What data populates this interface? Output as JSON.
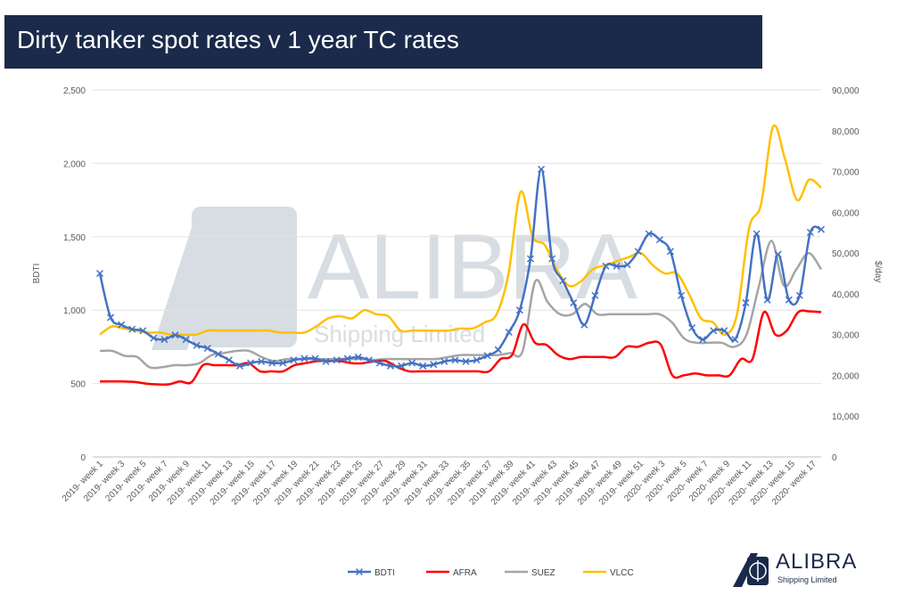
{
  "slide": {
    "title": "Dirty tanker spot rates v 1 year TC rates"
  },
  "watermark": {
    "name": "ALIBRA",
    "subtitle": "Shipping Limited"
  },
  "logo": {
    "name": "ALIBRA",
    "subtitle": "Shipping Limited"
  },
  "chart_data": {
    "type": "line",
    "title": "",
    "ylabel_left": "BDTI",
    "ylabel_right": "$/day",
    "ylim_left": [
      0,
      2500
    ],
    "ylim_right": [
      0,
      90000
    ],
    "yticks_left": [
      0,
      500,
      1000,
      1500,
      2000,
      2500
    ],
    "yticks_right": [
      0,
      10000,
      20000,
      30000,
      40000,
      50000,
      60000,
      70000,
      80000,
      90000
    ],
    "yticks_left_labels": [
      "0",
      "500",
      "1,000",
      "1,500",
      "2,000",
      "2,500"
    ],
    "yticks_right_labels": [
      "0",
      "10,000",
      "20,000",
      "30,000",
      "40,000",
      "50,000",
      "60,000",
      "70,000",
      "80,000",
      "90,000"
    ],
    "x_labels": [
      "2019- week 1",
      "2019- week 3",
      "2019- week 5",
      "2019- week 7",
      "2019- week 9",
      "2019- week 11",
      "2019- week 13",
      "2019- week 15",
      "2019- week 17",
      "2019- week 19",
      "2019- week 21",
      "2019- week 23",
      "2019- week 25",
      "2019- week 27",
      "2019- week 29",
      "2019- week 31",
      "2019- week 33",
      "2019- week 35",
      "2019- week 37",
      "2019- week 39",
      "2019- week 41",
      "2019- week 43",
      "2019- week 45",
      "2019- week 47",
      "2019- week 49",
      "2019- week 51",
      "2020- week 3",
      "2020- week 5",
      "2020- week 7",
      "2020- week 9",
      "2020- week 11",
      "2020- week 13",
      "2020- week 15",
      "2020- week 17"
    ],
    "legend_position": "bottom",
    "grid": true,
    "series": [
      {
        "name": "BDTI",
        "axis": "left",
        "color": "#4472c4",
        "marker": "x",
        "values": [
          1250,
          950,
          900,
          870,
          860,
          810,
          800,
          830,
          800,
          760,
          740,
          700,
          660,
          620,
          640,
          650,
          640,
          640,
          660,
          670,
          670,
          650,
          660,
          670,
          680,
          660,
          640,
          620,
          620,
          640,
          620,
          630,
          650,
          660,
          650,
          660,
          690,
          730,
          850,
          1000,
          1350,
          1960,
          1350,
          1200,
          1050,
          900,
          1100,
          1300,
          1300,
          1310,
          1400,
          1520,
          1480,
          1400,
          1100,
          880,
          800,
          860,
          860,
          800,
          1050,
          1520,
          1070,
          1380,
          1070,
          1100,
          1530,
          1550
        ]
      },
      {
        "name": "AFRA",
        "axis": "right",
        "color": "#ff0000",
        "values": [
          18500,
          18500,
          18500,
          18400,
          18000,
          17800,
          17800,
          18500,
          18300,
          22500,
          22500,
          22500,
          22500,
          23000,
          21000,
          21000,
          21000,
          22500,
          23000,
          23500,
          23500,
          23500,
          23000,
          23000,
          23500,
          23500,
          22000,
          21000,
          21000,
          21000,
          21000,
          21000,
          21000,
          21000,
          21000,
          24000,
          25000,
          32500,
          28000,
          27500,
          25000,
          24000,
          24500,
          24500,
          24500,
          24500,
          27000,
          27000,
          28000,
          27500,
          20000,
          20000,
          20500,
          20000,
          20000,
          20000,
          24000,
          24000,
          35500,
          30000,
          31000,
          35500,
          35700,
          35500
        ]
      },
      {
        "name": "SUEZ",
        "axis": "right",
        "color": "#a5a5a5",
        "values": [
          26000,
          26000,
          24800,
          24500,
          22000,
          22000,
          22500,
          22500,
          23000,
          25000,
          25500,
          26000,
          26000,
          24500,
          23500,
          24000,
          24000,
          24000,
          24000,
          24000,
          24000,
          24000,
          23800,
          24000,
          24000,
          24000,
          24000,
          24000,
          24500,
          25000,
          25000,
          25000,
          25000,
          25500,
          26000,
          43000,
          38000,
          35000,
          35000,
          37500,
          35000,
          35000,
          35000,
          35000,
          35000,
          35000,
          33000,
          29000,
          28000,
          28000,
          28000,
          27000,
          30000,
          42000,
          53000,
          42000,
          46000,
          50000,
          46000
        ]
      },
      {
        "name": "VLCC",
        "axis": "right",
        "color": "#ffc000",
        "values": [
          30000,
          32000,
          31500,
          31000,
          30500,
          30500,
          30000,
          30000,
          30000,
          31000,
          31000,
          31000,
          31000,
          31000,
          31000,
          30500,
          30500,
          30500,
          32000,
          34000,
          34500,
          34000,
          36000,
          35000,
          34500,
          31000,
          31000,
          31000,
          31000,
          31000,
          31500,
          31500,
          33000,
          35000,
          45000,
          65000,
          54000,
          52000,
          46000,
          42000,
          43000,
          46000,
          47000,
          48000,
          49000,
          50000,
          47000,
          45000,
          45000,
          40000,
          34000,
          33000,
          30000,
          35000,
          56000,
          62000,
          81000,
          73000,
          63000,
          68000,
          66000
        ]
      }
    ]
  }
}
